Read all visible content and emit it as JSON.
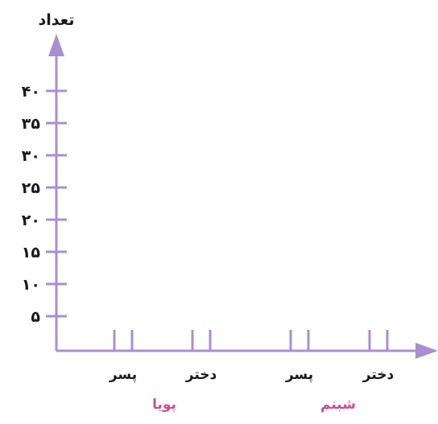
{
  "chart_data": {
    "type": "bar",
    "title": "",
    "ylabel": "تعداد",
    "xlabel": "",
    "ylim": [
      0,
      40
    ],
    "yticks": [
      {
        "value": 5,
        "label": "۵"
      },
      {
        "value": 10,
        "label": "۱۰"
      },
      {
        "value": 15,
        "label": "۱۵"
      },
      {
        "value": 20,
        "label": "۲۰"
      },
      {
        "value": 25,
        "label": "۲۵"
      },
      {
        "value": 30,
        "label": "۳۰"
      },
      {
        "value": 35,
        "label": "۳۵"
      },
      {
        "value": 40,
        "label": "۴۰"
      }
    ],
    "groups": [
      {
        "name": "پویا",
        "categories": [
          "پسر",
          "دختر"
        ]
      },
      {
        "name": "شبنم",
        "categories": [
          "پسر",
          "دختر"
        ]
      }
    ],
    "values": [
      null,
      null,
      null,
      null
    ],
    "grid": false,
    "colors": {
      "axis": "#a98fd0",
      "group_label": "#c9508f",
      "text": "#1a1a1a"
    }
  }
}
